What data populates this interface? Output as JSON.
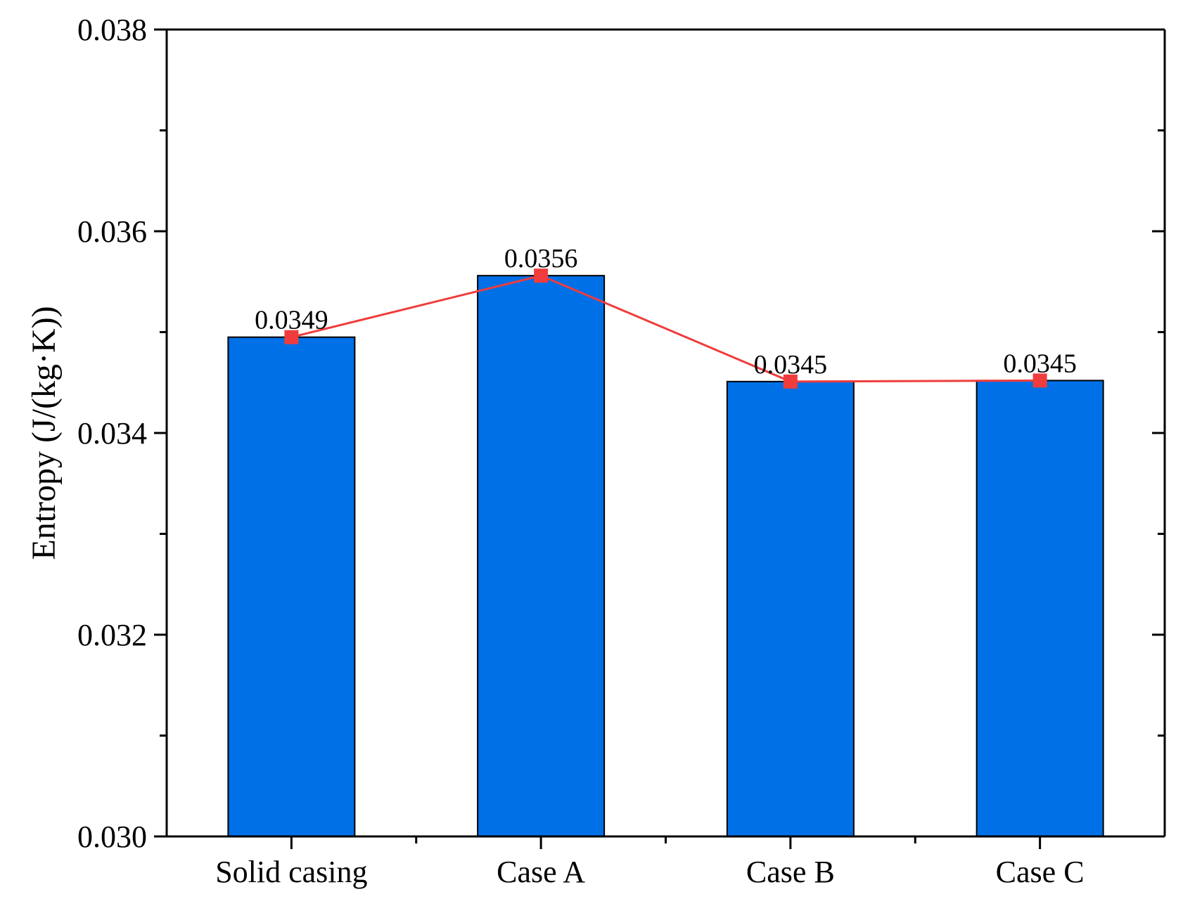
{
  "chart_data": {
    "type": "bar",
    "categories": [
      "Solid casing",
      "Case A",
      "Case B",
      "Case C"
    ],
    "values": [
      0.03495,
      0.03556,
      0.03451,
      0.03452
    ],
    "data_labels": [
      "0.0349",
      "0.0356",
      "0.0345",
      "0.0345"
    ],
    "series": [
      {
        "name": "Entropy (bar)",
        "kind": "bar",
        "values": [
          0.03495,
          0.03556,
          0.03451,
          0.03452
        ]
      },
      {
        "name": "Entropy (line)",
        "kind": "line",
        "values": [
          0.03495,
          0.03556,
          0.03451,
          0.03452
        ]
      }
    ],
    "title": "",
    "xlabel": "",
    "ylabel": "Entropy (J/(kg·K))",
    "ylim": [
      0.03,
      0.038
    ],
    "yticks": [
      "0.030",
      "0.032",
      "0.034",
      "0.036",
      "0.038"
    ],
    "yminor_step": 0.001,
    "grid": false
  },
  "colors": {
    "bar_fill": "#0070E6",
    "bar_stroke": "#000000",
    "line": "#F03C3C",
    "marker": "#F03C3C",
    "axis": "#000000"
  }
}
